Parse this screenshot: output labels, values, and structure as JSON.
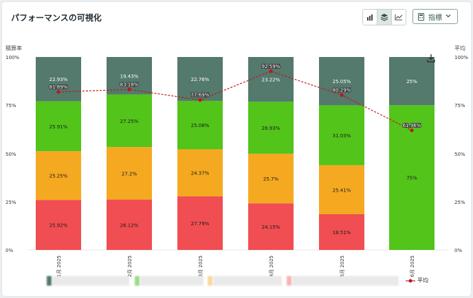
{
  "header": {
    "title": "パフォーマンスの可視化",
    "metric_label": "指標",
    "view_buttons": [
      "bar-chart-icon",
      "stacked-layers-icon",
      "line-chart-icon"
    ]
  },
  "chart_data": {
    "type": "bar",
    "stacked": true,
    "y_left_label": "積算率",
    "y_right_label": "平均",
    "y_ticks": [
      "100%",
      "75%",
      "50%",
      "25%",
      "0%"
    ],
    "ylim": [
      0,
      100
    ],
    "categories": [
      "1月 2025",
      "2月 2025",
      "3月 2025",
      "4月 2025",
      "5月 2025",
      "6月 2025"
    ],
    "series": [
      {
        "color": "#f04e52",
        "values": [
          25.92,
          26.12,
          27.79,
          24.15,
          18.51,
          0
        ],
        "labels": [
          "25.92%",
          "26.12%",
          "27.79%",
          "24.15%",
          "18.51%",
          ""
        ]
      },
      {
        "color": "#f5a920",
        "values": [
          25.25,
          27.2,
          24.37,
          25.7,
          25.41,
          0
        ],
        "labels": [
          "25.25%",
          "27.2%",
          "24.37%",
          "25.7%",
          "25.41%",
          ""
        ]
      },
      {
        "color": "#52c41a",
        "values": [
          25.91,
          27.25,
          25.08,
          26.93,
          31.03,
          75
        ],
        "labels": [
          "25.91%",
          "27.25%",
          "25.08%",
          "26.93%",
          "31.03%",
          "75%"
        ]
      },
      {
        "color": "#537a6c",
        "values": [
          22.93,
          19.43,
          22.76,
          23.22,
          25.05,
          25
        ],
        "labels": [
          "22.93%",
          "19.43%",
          "22.76%",
          "23.22%",
          "25.05%",
          "25%"
        ]
      }
    ],
    "line": {
      "name": "平均",
      "color": "#c0161c",
      "values": [
        81.89,
        83.18,
        77.69,
        92.59,
        80.29,
        61.96
      ],
      "labels": [
        "81.89%",
        "83.18%",
        "77.69%",
        "92.59%",
        "80.29%",
        "61.96%"
      ]
    },
    "legend_position": "bottom"
  }
}
